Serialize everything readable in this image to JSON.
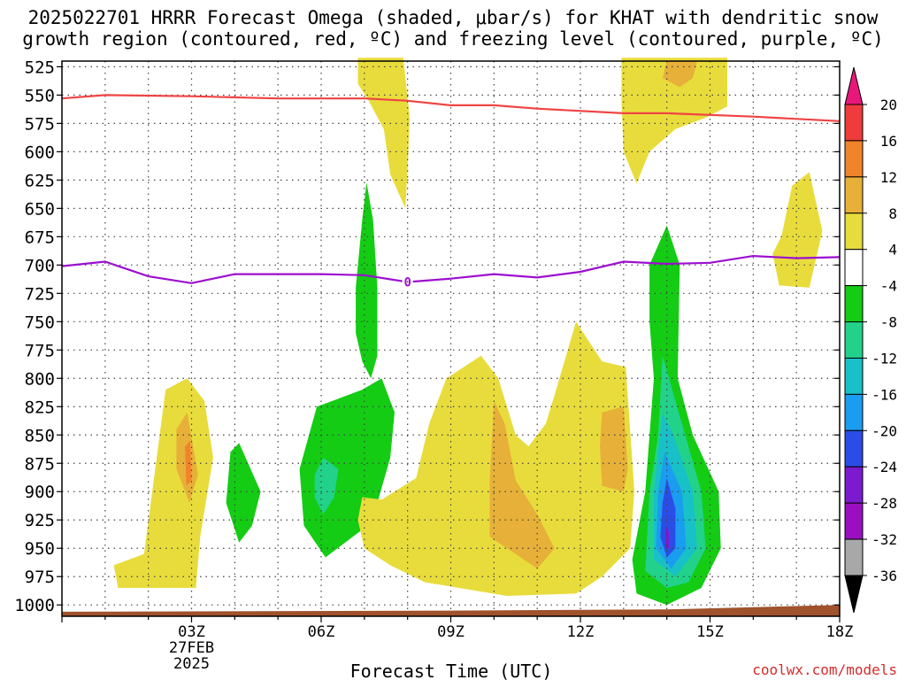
{
  "title_line1": "2025022701 HRRR Forecast Omega (shaded, μbar/s) for KHAT with dendritic snow",
  "title_line2": "growth region (contoured, red, ºC) and freezing level (contoured, purple, ºC)",
  "watermark": "coolwx.com/models",
  "chart_data": {
    "type": "heatmap",
    "xlabel": "Forecast Time (UTC)",
    "ylabel": "",
    "x_range_hours": [
      0,
      18
    ],
    "y_range_hPa": [
      1010,
      520
    ],
    "y_ticks": [
      525,
      550,
      575,
      600,
      625,
      650,
      675,
      700,
      725,
      750,
      775,
      800,
      825,
      850,
      875,
      900,
      925,
      950,
      975,
      1000
    ],
    "x_ticks": [
      {
        "hour": 3,
        "label": "03Z",
        "sub1": "27FEB",
        "sub2": "2025"
      },
      {
        "hour": 6,
        "label": "06Z"
      },
      {
        "hour": 9,
        "label": "09Z"
      },
      {
        "hour": 12,
        "label": "12Z"
      },
      {
        "hour": 15,
        "label": "15Z"
      },
      {
        "hour": 18,
        "label": "18Z"
      }
    ],
    "grid": true,
    "colorbar_labels": [
      "20",
      "16",
      "12",
      "8",
      "4",
      "-4",
      "-8",
      "-12",
      "-16",
      "-20",
      "-24",
      "-28",
      "-32",
      "-36"
    ],
    "colorbar_colors": [
      "#ef3b3b",
      "#f0842a",
      "#e7b038",
      "#e8dc3c",
      "#ffffff",
      "#14cc14",
      "#22d28a",
      "#18c0c8",
      "#1a9cf0",
      "#2a4de8",
      "#7c1ad0",
      "#9a10c0",
      "#a8a8a8"
    ],
    "colorbar_top_color": "#e8177a",
    "colorbar_bottom_color": "#000000",
    "color_levels": {
      "y4": "#e8dc3c",
      "o8": "#e7b038",
      "o12": "#f0842a",
      "g": "#14cc14",
      "gt": "#22d28a",
      "c": "#18c0c8",
      "b": "#1a9cf0",
      "db": "#2a4de8",
      "p": "#7c1ad0"
    },
    "dgz_contour": {
      "label": "",
      "color": "#ef4444",
      "points": [
        [
          0,
          553
        ],
        [
          1,
          550
        ],
        [
          3,
          551
        ],
        [
          5,
          553
        ],
        [
          7,
          553
        ],
        [
          8,
          555
        ],
        [
          9,
          559
        ],
        [
          10,
          559
        ],
        [
          11,
          562
        ],
        [
          13,
          566
        ],
        [
          14,
          566
        ],
        [
          16,
          569
        ],
        [
          18,
          573
        ]
      ]
    },
    "freezing_contour": {
      "label": "0",
      "color": "#9c0fcf",
      "points": [
        [
          0,
          701
        ],
        [
          1,
          697
        ],
        [
          2,
          710
        ],
        [
          3,
          716
        ],
        [
          4,
          708
        ],
        [
          6,
          708
        ],
        [
          7,
          709
        ],
        [
          8,
          715
        ],
        [
          9,
          712
        ],
        [
          10,
          708
        ],
        [
          11,
          711
        ],
        [
          12,
          706
        ],
        [
          13,
          697
        ],
        [
          14,
          699
        ],
        [
          15,
          698
        ],
        [
          16,
          692
        ],
        [
          17,
          694
        ],
        [
          18,
          693
        ]
      ]
    },
    "terrain": {
      "color": "#a0522d",
      "points": [
        [
          0,
          1006
        ],
        [
          9,
          1005
        ],
        [
          14,
          1004
        ],
        [
          18,
          1000
        ]
      ]
    },
    "shaded_regions": [
      {
        "level": "y4",
        "name": "yellow-top-left",
        "points": [
          [
            6.85,
            517
          ],
          [
            7.9,
            517
          ],
          [
            8.05,
            570
          ],
          [
            8.0,
            615
          ],
          [
            7.95,
            650
          ],
          [
            7.6,
            620
          ],
          [
            7.45,
            580
          ],
          [
            7.1,
            555
          ],
          [
            6.85,
            540
          ]
        ]
      },
      {
        "level": "y4",
        "name": "yellow-top-right",
        "points": [
          [
            13.7,
            517
          ],
          [
            15.4,
            517
          ],
          [
            15.4,
            560
          ],
          [
            14.9,
            570
          ],
          [
            14.2,
            580
          ],
          [
            13.6,
            600
          ],
          [
            13.3,
            628
          ],
          [
            13.0,
            600
          ],
          [
            12.95,
            555
          ],
          [
            12.95,
            517
          ]
        ]
      },
      {
        "level": "o8",
        "name": "orange-top-right",
        "points": [
          [
            14.0,
            520
          ],
          [
            14.7,
            520
          ],
          [
            14.6,
            535
          ],
          [
            14.3,
            543
          ],
          [
            13.9,
            535
          ]
        ]
      },
      {
        "level": "y4",
        "name": "yellow-right",
        "points": [
          [
            16.65,
            675
          ],
          [
            16.9,
            630
          ],
          [
            17.3,
            618
          ],
          [
            17.6,
            670
          ],
          [
            17.3,
            720
          ],
          [
            16.6,
            718
          ],
          [
            16.45,
            690
          ]
        ]
      },
      {
        "level": "y4",
        "name": "yellow-left",
        "points": [
          [
            1.2,
            965
          ],
          [
            1.9,
            955
          ],
          [
            2.4,
            810
          ],
          [
            2.9,
            800
          ],
          [
            3.3,
            820
          ],
          [
            3.5,
            870
          ],
          [
            3.2,
            940
          ],
          [
            3.1,
            985
          ],
          [
            1.3,
            985
          ]
        ]
      },
      {
        "level": "o8",
        "name": "orange-left",
        "points": [
          [
            2.65,
            845
          ],
          [
            2.9,
            830
          ],
          [
            3.15,
            885
          ],
          [
            2.95,
            910
          ],
          [
            2.65,
            880
          ]
        ]
      },
      {
        "level": "o12",
        "name": "red-left",
        "points": [
          [
            2.85,
            860
          ],
          [
            2.97,
            855
          ],
          [
            3.0,
            890
          ],
          [
            2.88,
            895
          ]
        ]
      },
      {
        "level": "g",
        "name": "green-small-left",
        "points": [
          [
            3.9,
            865
          ],
          [
            4.1,
            857
          ],
          [
            4.6,
            900
          ],
          [
            4.4,
            930
          ],
          [
            4.1,
            945
          ],
          [
            3.8,
            910
          ]
        ]
      },
      {
        "level": "g",
        "name": "green-mid",
        "points": [
          [
            5.5,
            880
          ],
          [
            5.9,
            825
          ],
          [
            6.4,
            818
          ],
          [
            6.95,
            810
          ],
          [
            7.4,
            800
          ],
          [
            7.7,
            830
          ],
          [
            7.6,
            870
          ],
          [
            7.3,
            910
          ],
          [
            6.9,
            935
          ],
          [
            6.1,
            958
          ],
          [
            5.6,
            930
          ]
        ]
      },
      {
        "level": "g",
        "name": "green-vertical",
        "points": [
          [
            6.8,
            720
          ],
          [
            6.95,
            660
          ],
          [
            7.05,
            627
          ],
          [
            7.2,
            660
          ],
          [
            7.3,
            720
          ],
          [
            7.3,
            780
          ],
          [
            7.15,
            800
          ],
          [
            6.95,
            785
          ],
          [
            6.8,
            760
          ]
        ]
      },
      {
        "level": "gt",
        "name": "teal-mid",
        "points": [
          [
            5.85,
            885
          ],
          [
            6.05,
            870
          ],
          [
            6.4,
            880
          ],
          [
            6.3,
            905
          ],
          [
            6.05,
            920
          ],
          [
            5.85,
            905
          ]
        ]
      },
      {
        "level": "y4",
        "name": "yellow-center",
        "points": [
          [
            6.95,
            905
          ],
          [
            7.4,
            907
          ],
          [
            8.2,
            888
          ],
          [
            8.5,
            840
          ],
          [
            8.9,
            800
          ],
          [
            9.7,
            780
          ],
          [
            10.1,
            800
          ],
          [
            10.5,
            850
          ],
          [
            10.8,
            860
          ],
          [
            11.2,
            840
          ],
          [
            11.4,
            815
          ],
          [
            11.9,
            750
          ],
          [
            12.5,
            785
          ],
          [
            13.05,
            790
          ],
          [
            13.25,
            900
          ],
          [
            13.15,
            950
          ],
          [
            12.5,
            975
          ],
          [
            11.9,
            990
          ],
          [
            10.3,
            992
          ],
          [
            8.4,
            980
          ],
          [
            7.6,
            965
          ],
          [
            7.0,
            950
          ],
          [
            6.85,
            925
          ]
        ]
      },
      {
        "level": "o8",
        "name": "orange-center",
        "points": [
          [
            9.9,
            890
          ],
          [
            10.0,
            820
          ],
          [
            10.25,
            840
          ],
          [
            10.5,
            890
          ],
          [
            11.0,
            920
          ],
          [
            11.4,
            950
          ],
          [
            11.0,
            968
          ],
          [
            10.5,
            955
          ],
          [
            9.9,
            940
          ]
        ]
      },
      {
        "level": "o8",
        "name": "orange-right-mid",
        "points": [
          [
            12.5,
            830
          ],
          [
            13.0,
            825
          ],
          [
            13.1,
            880
          ],
          [
            13.0,
            900
          ],
          [
            12.5,
            895
          ],
          [
            12.45,
            860
          ]
        ]
      },
      {
        "level": "g",
        "name": "green-right",
        "points": [
          [
            13.6,
            700
          ],
          [
            14.0,
            665
          ],
          [
            14.3,
            700
          ],
          [
            14.25,
            800
          ],
          [
            14.6,
            850
          ],
          [
            15.2,
            900
          ],
          [
            15.25,
            950
          ],
          [
            14.8,
            985
          ],
          [
            14.0,
            1000
          ],
          [
            13.3,
            990
          ],
          [
            13.2,
            960
          ],
          [
            13.5,
            900
          ],
          [
            13.7,
            800
          ],
          [
            13.6,
            750
          ]
        ]
      },
      {
        "level": "gt",
        "name": "teal-right",
        "points": [
          [
            13.9,
            780
          ],
          [
            14.05,
            800
          ],
          [
            14.5,
            860
          ],
          [
            14.8,
            900
          ],
          [
            14.9,
            950
          ],
          [
            14.5,
            980
          ],
          [
            14.0,
            985
          ],
          [
            13.5,
            970
          ],
          [
            13.6,
            900
          ],
          [
            13.8,
            850
          ]
        ]
      },
      {
        "level": "c",
        "name": "cyan-right",
        "points": [
          [
            13.9,
            830
          ],
          [
            14.15,
            850
          ],
          [
            14.6,
            900
          ],
          [
            14.7,
            950
          ],
          [
            14.2,
            975
          ],
          [
            13.7,
            960
          ],
          [
            13.7,
            900
          ]
        ]
      },
      {
        "level": "b",
        "name": "blue-right",
        "points": [
          [
            13.95,
            865
          ],
          [
            14.35,
            900
          ],
          [
            14.45,
            950
          ],
          [
            14.1,
            968
          ],
          [
            13.75,
            950
          ],
          [
            13.8,
            900
          ]
        ]
      },
      {
        "level": "db",
        "name": "darkblue-right",
        "points": [
          [
            14.0,
            888
          ],
          [
            14.2,
            915
          ],
          [
            14.2,
            950
          ],
          [
            14.0,
            958
          ],
          [
            13.85,
            940
          ],
          [
            13.9,
            910
          ]
        ]
      },
      {
        "level": "p",
        "name": "purple-right",
        "points": [
          [
            13.97,
            930
          ],
          [
            14.05,
            935
          ],
          [
            14.05,
            950
          ],
          [
            13.97,
            950
          ]
        ]
      }
    ]
  }
}
